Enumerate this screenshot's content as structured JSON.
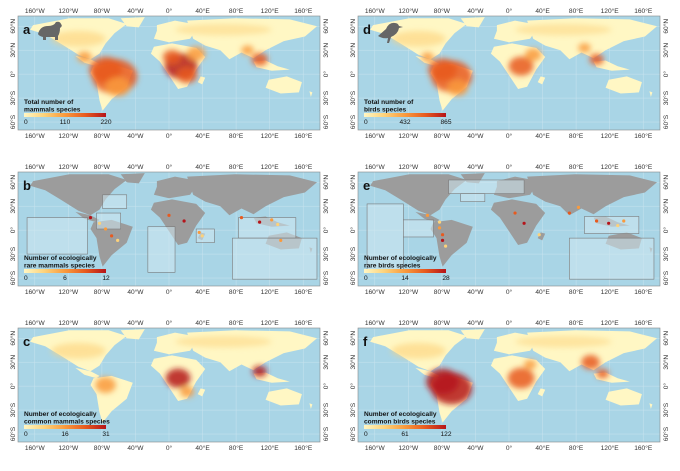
{
  "axes": {
    "lon": [
      "160°W",
      "120°W",
      "80°W",
      "40°W",
      "0°",
      "40°E",
      "80°E",
      "120°E",
      "160°E"
    ],
    "lat": [
      "60°N",
      "30°N",
      "0°",
      "30°S",
      "60°S"
    ]
  },
  "panels": [
    {
      "letter": "a",
      "title": [
        "Total number of",
        "mammals species"
      ],
      "legend": [
        "0",
        "110",
        "220"
      ],
      "icon": "bear-icon"
    },
    {
      "letter": "d",
      "title": [
        "Total number of",
        "birds species"
      ],
      "legend": [
        "0",
        "432",
        "865"
      ],
      "icon": "bird-icon"
    },
    {
      "letter": "b",
      "title": [
        "Number of ecologically",
        "rare mammals species"
      ],
      "legend": [
        "0",
        "6",
        "12"
      ]
    },
    {
      "letter": "e",
      "title": [
        "Number of ecologically",
        "rare birds species"
      ],
      "legend": [
        "0",
        "14",
        "28"
      ]
    },
    {
      "letter": "c",
      "title": [
        "Number of ecologically",
        "common mammals species"
      ],
      "legend": [
        "0",
        "16",
        "31"
      ]
    },
    {
      "letter": "f",
      "title": [
        "Number of ecologically",
        "common birds species"
      ],
      "legend": [
        "0",
        "61",
        "122"
      ]
    }
  ],
  "colors": {
    "ocean": "#a9d5e6",
    "land_empty": "#9c9c9c",
    "scale": [
      "#fff7c4",
      "#fdd27a",
      "#f99a3d",
      "#e75a1f",
      "#b5141a"
    ]
  }
}
